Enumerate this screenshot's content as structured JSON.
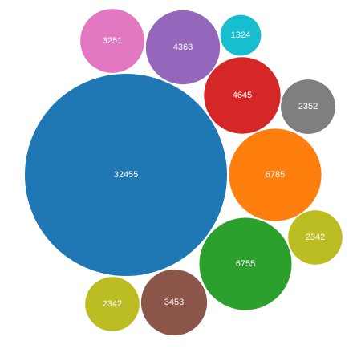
{
  "chart_data": {
    "type": "bubble",
    "title": "",
    "label_color": "#ffffff",
    "bubbles": [
      {
        "value": 32455,
        "color": "#1f77b4"
      },
      {
        "value": 6785,
        "color": "#ff7f0e"
      },
      {
        "value": 6755,
        "color": "#2ca02c"
      },
      {
        "value": 4645,
        "color": "#d62728"
      },
      {
        "value": 4363,
        "color": "#9467bd"
      },
      {
        "value": 3453,
        "color": "#8c564b"
      },
      {
        "value": 3251,
        "color": "#e377c2"
      },
      {
        "value": 2352,
        "color": "#7f7f7f"
      },
      {
        "value": 2342,
        "color": "#bcbd22"
      },
      {
        "value": 2342,
        "color": "#bcbd22"
      },
      {
        "value": 1324,
        "color": "#17becf"
      }
    ]
  }
}
